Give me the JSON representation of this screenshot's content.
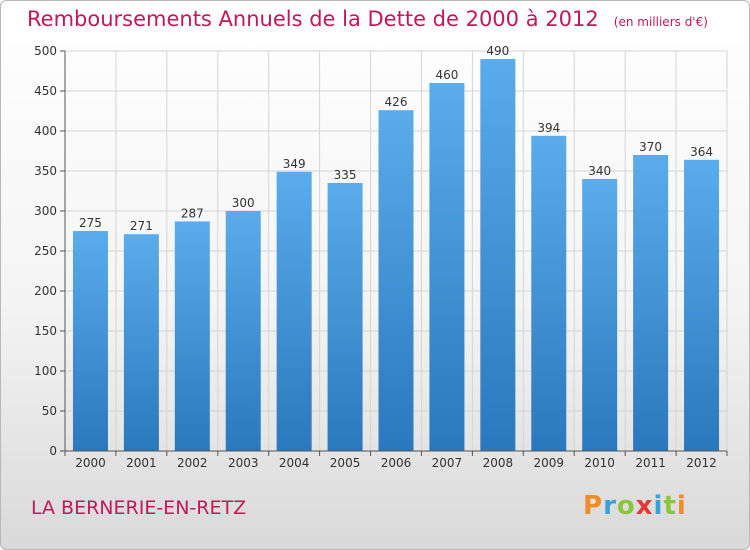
{
  "header": {
    "title": "Remboursements Annuels de la Dette de 2000 à 2012",
    "unit": "(en milliers d'€)"
  },
  "footer": {
    "place": "LA BERNERIE-EN-RETZ",
    "brand": [
      "P",
      "r",
      "o",
      "x",
      "i",
      "t",
      "i"
    ],
    "brand_colors": [
      "#f28c28",
      "#3aa0d8",
      "#8cc63f",
      "#e53935",
      "#3aa0d8",
      "#8cc63f",
      "#f28c28"
    ]
  },
  "colors": {
    "bar_top": "#5aacec",
    "bar_bottom": "#2a78bd",
    "grid": "#d4d4d4",
    "axis": "#555555"
  },
  "chart_data": {
    "type": "bar",
    "categories": [
      "2000",
      "2001",
      "2002",
      "2003",
      "2004",
      "2005",
      "2006",
      "2007",
      "2008",
      "2009",
      "2010",
      "2011",
      "2012"
    ],
    "values": [
      275,
      271,
      287,
      300,
      349,
      335,
      426,
      460,
      490,
      394,
      340,
      370,
      364
    ],
    "ylim": [
      0,
      500
    ],
    "yticks": [
      0,
      50,
      100,
      150,
      200,
      250,
      300,
      350,
      400,
      450,
      500
    ],
    "grid": true,
    "data_labels": true
  }
}
